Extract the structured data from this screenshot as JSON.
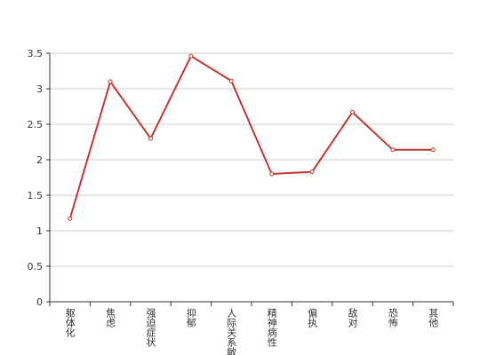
{
  "chart_data": {
    "type": "line",
    "categories": [
      "躯体化",
      "焦虑",
      "强迫症状",
      "抑郁",
      "人际关系敏感",
      "精神病性",
      "偏执",
      "敌对",
      "恐怖",
      "其他"
    ],
    "values": [
      1.17,
      3.1,
      2.3,
      3.46,
      3.11,
      1.8,
      1.83,
      2.67,
      2.14,
      2.14
    ],
    "color": "#c23531",
    "ylim": [
      0,
      3.5
    ],
    "yticks": [
      0,
      0.5,
      1,
      {
        "value": 1.5,
        "label": "1.5"
      },
      2,
      2.5,
      3,
      3.5
    ],
    "grid": true
  }
}
